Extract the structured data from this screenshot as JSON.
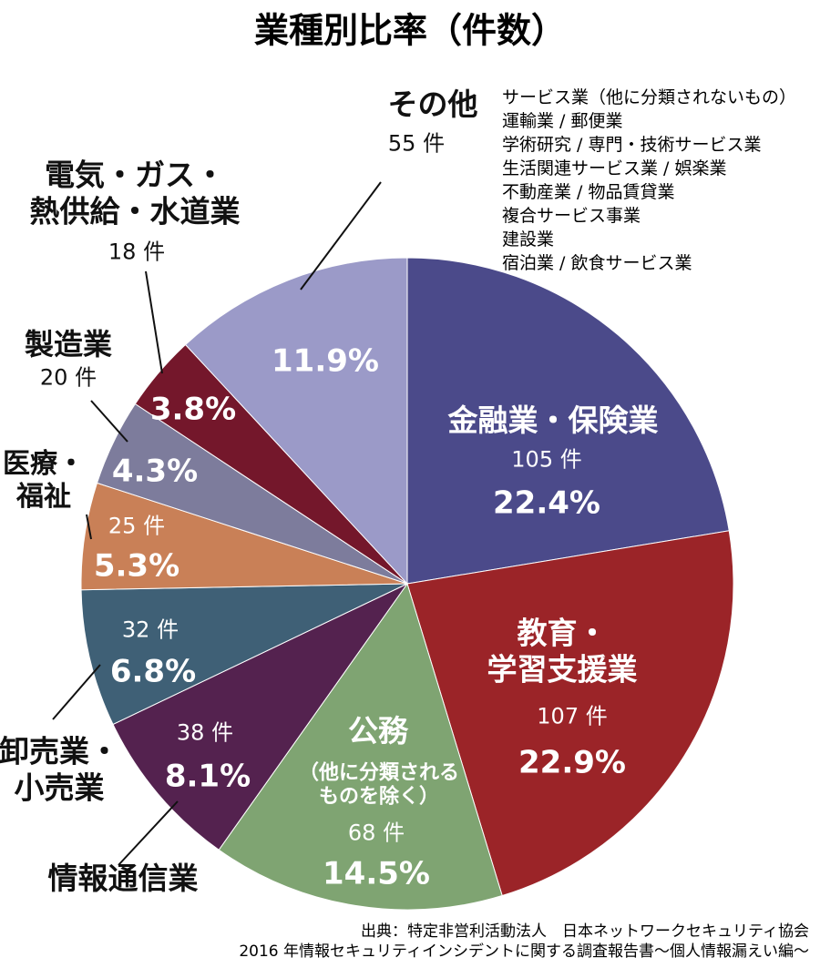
{
  "chart_data": {
    "type": "pie",
    "title": "業種別比率（件数）",
    "categories": [
      "金融業・保険業",
      "教育・\n学習支援業",
      "公務",
      "情報通信業",
      "卸売業・\n小売業",
      "医療・\n福祉",
      "製造業",
      "電気・ガス・\n熱供給・水道業",
      "その他"
    ],
    "values": [
      22.4,
      22.9,
      14.5,
      8.1,
      6.8,
      5.3,
      4.3,
      3.8,
      11.9
    ],
    "value_labels": [
      "22.4%",
      "22.9%",
      "14.5%",
      "8.1%",
      "6.8%",
      "5.3%",
      "4.3%",
      "3.8%",
      "11.9%"
    ],
    "count_labels": [
      "105 件",
      "107 件",
      "68 件",
      "38 件",
      "32 件",
      "25 件",
      "20 件",
      "18 件",
      "55 件"
    ],
    "colors": [
      "#4b4a8a",
      "#9b2428",
      "#7fa472",
      "#54224f",
      "#3f6076",
      "#c98057",
      "#7d7c9c",
      "#74172b",
      "#9b9ac8"
    ],
    "public_note": "（他に分類される\nものを除く）",
    "other_breakdown": [
      "サービス業（他に分類されないもの）",
      "運輸業 / 郵便業",
      "学術研究 / 専門・技術サービス業",
      "生活関連サービス業 / 娯楽業",
      "不動産業 / 物品賃貸業",
      "複合サービス事業",
      "建設業",
      "宿泊業 / 飲食サービス業"
    ],
    "source": "出典：特定非営利活動法人　日本ネットワークセキュリティ協会\n2016 年情報セキュリティインシデントに関する調査報告書〜個人情報漏えい編〜"
  }
}
